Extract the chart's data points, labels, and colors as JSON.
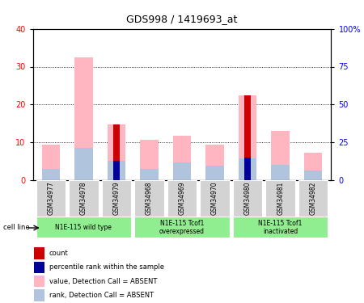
{
  "title": "GDS998 / 1419693_at",
  "samples": [
    "GSM34977",
    "GSM34978",
    "GSM34979",
    "GSM34968",
    "GSM34969",
    "GSM34970",
    "GSM34980",
    "GSM34981",
    "GSM34982"
  ],
  "value_absent": [
    9.5,
    32.5,
    14.7,
    10.8,
    11.8,
    9.5,
    22.5,
    13.0,
    7.2
  ],
  "rank_absent": [
    3.0,
    8.5,
    5.2,
    3.0,
    4.8,
    3.8,
    5.8,
    4.0,
    2.5
  ],
  "count": [
    0.0,
    0.0,
    14.7,
    0.0,
    0.0,
    0.0,
    22.5,
    0.0,
    0.0
  ],
  "percentile": [
    0.0,
    0.0,
    5.2,
    0.0,
    0.0,
    0.0,
    6.0,
    0.0,
    0.0
  ],
  "left_ylim": [
    0,
    40
  ],
  "right_ylim": [
    0,
    100
  ],
  "left_yticks": [
    0,
    10,
    20,
    30,
    40
  ],
  "right_yticks": [
    0,
    25,
    50,
    75,
    100
  ],
  "right_yticklabels": [
    "0",
    "25",
    "50",
    "75",
    "100%"
  ],
  "color_value_absent": "#FFB6C1",
  "color_rank_absent": "#B0C4DE",
  "color_count": "#CC0000",
  "color_percentile": "#000099",
  "group_label_bg": "#90EE90",
  "sample_bg": "#D3D3D3",
  "group_defs": [
    {
      "start": 0,
      "end": 2,
      "label": "N1E-115 wild type"
    },
    {
      "start": 3,
      "end": 5,
      "label": "N1E-115 Tcof1\noverexpressed"
    },
    {
      "start": 6,
      "end": 8,
      "label": "N1E-115 Tcof1\ninactivated"
    }
  ],
  "legend_items": [
    {
      "color": "#CC0000",
      "label": "count"
    },
    {
      "color": "#000099",
      "label": "percentile rank within the sample"
    },
    {
      "color": "#FFB6C1",
      "label": "value, Detection Call = ABSENT"
    },
    {
      "color": "#B0C4DE",
      "label": "rank, Detection Call = ABSENT"
    }
  ]
}
